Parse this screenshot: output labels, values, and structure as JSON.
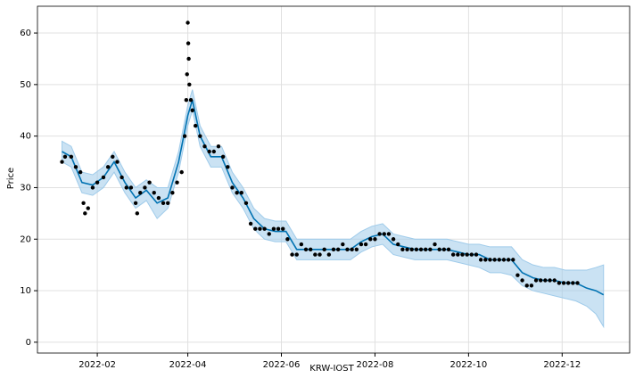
{
  "chart_data": {
    "type": "forecast",
    "xlabel": "KRW-IOST",
    "ylabel": "Price",
    "xlim": [
      -8,
      378
    ],
    "ylim": [
      -2.1,
      65.2
    ],
    "xticks": [
      {
        "value": 31,
        "label": "2022-02"
      },
      {
        "value": 90,
        "label": "2022-04"
      },
      {
        "value": 151,
        "label": "2022-06"
      },
      {
        "value": 212,
        "label": "2022-08"
      },
      {
        "value": 273,
        "label": "2022-10"
      },
      {
        "value": 334,
        "label": "2022-12"
      }
    ],
    "yticks": [
      0,
      10,
      20,
      30,
      40,
      50,
      60
    ],
    "grid": true,
    "series": [
      {
        "type": "scatter",
        "color": "#000000",
        "x": [
          8,
          10,
          14,
          17,
          20,
          22,
          23,
          25,
          28,
          31,
          35,
          38,
          41,
          44,
          47,
          50,
          53,
          56,
          57,
          59,
          62,
          65,
          68,
          71,
          74,
          77,
          80,
          83,
          86,
          88,
          89,
          89.5,
          90,
          90.3,
          90.6,
          91,
          92,
          93,
          95,
          98,
          101,
          104,
          107,
          110,
          113,
          116,
          119,
          122,
          125,
          128,
          131,
          134,
          137,
          140,
          143,
          146,
          149,
          152,
          155,
          158,
          161,
          164,
          167,
          170,
          173,
          176,
          179,
          182,
          185,
          188,
          191,
          194,
          197,
          200,
          203,
          206,
          209,
          212,
          215,
          218,
          221,
          224,
          227,
          230,
          233,
          236,
          239,
          242,
          245,
          248,
          251,
          254,
          257,
          260,
          263,
          266,
          269,
          272,
          275,
          278,
          281,
          284,
          287,
          290,
          293,
          296,
          299,
          302,
          305,
          308,
          311,
          314,
          317,
          320,
          323,
          326,
          329,
          332,
          335,
          338,
          341,
          344
        ],
        "values": [
          35,
          36,
          36,
          34,
          33,
          27,
          25,
          26,
          30,
          31,
          32,
          34,
          36,
          35,
          32,
          30,
          30,
          27,
          25,
          29,
          30,
          31,
          29,
          28,
          27,
          27,
          29,
          31,
          33,
          40,
          47,
          52,
          62,
          58,
          55,
          50,
          47,
          45,
          42,
          40,
          38,
          37,
          37,
          38,
          36,
          34,
          30,
          29,
          29,
          27,
          23,
          22,
          22,
          22,
          21,
          22,
          22,
          22,
          20,
          17,
          17,
          19,
          18,
          18,
          17,
          17,
          18,
          17,
          18,
          18,
          19,
          18,
          18,
          18,
          19,
          19,
          20,
          20,
          21,
          21,
          21,
          20,
          19,
          18,
          18,
          18,
          18,
          18,
          18,
          18,
          19,
          18,
          18,
          18,
          17,
          17,
          17,
          17,
          17,
          17,
          16,
          16,
          16,
          16,
          16,
          16,
          16,
          16,
          13,
          12,
          11,
          11,
          12,
          12,
          12,
          12,
          12,
          11.5,
          11.5,
          11.5,
          11.5,
          11.5
        ]
      },
      {
        "type": "line",
        "color": "#0072B2",
        "band_color": "#9fcbea",
        "x": [
          8,
          14,
          21,
          28,
          35,
          42,
          49,
          56,
          63,
          70,
          77,
          84,
          90,
          93,
          98,
          105,
          112,
          119,
          126,
          133,
          140,
          147,
          154,
          161,
          168,
          175,
          182,
          189,
          196,
          203,
          210,
          217,
          224,
          231,
          238,
          245,
          252,
          259,
          266,
          273,
          280,
          287,
          294,
          301,
          308,
          315,
          322,
          329,
          336,
          343,
          350,
          356,
          361
        ],
        "values": [
          37,
          36,
          31,
          30.5,
          32,
          35,
          31,
          28,
          29.5,
          27,
          28,
          35,
          44,
          47,
          40,
          36,
          36,
          31,
          28,
          24,
          22,
          21.5,
          21.5,
          18,
          18,
          18,
          18,
          18,
          18,
          19.5,
          20.5,
          21,
          19,
          18.5,
          18,
          18,
          18,
          18,
          17.5,
          17,
          17,
          16,
          16,
          16,
          13.5,
          12.5,
          12,
          12,
          11.5,
          11.5,
          10.5,
          10,
          9.2
        ],
        "lower": [
          35,
          34,
          29,
          28.5,
          30,
          33,
          29,
          26,
          27.5,
          24,
          26,
          33,
          42,
          45,
          38,
          34,
          34,
          29,
          26,
          22,
          20,
          19.5,
          19.5,
          16,
          16,
          16,
          16,
          16,
          16,
          17.5,
          18.5,
          19,
          17,
          16.5,
          16,
          16,
          16,
          16,
          15.5,
          15,
          14.5,
          13.5,
          13.5,
          13,
          11,
          10,
          9.5,
          9,
          8.5,
          8,
          7,
          5.5,
          3
        ],
        "upper": [
          39,
          38,
          33,
          32.5,
          34,
          37,
          33,
          30,
          31.5,
          30,
          30,
          37,
          46,
          49,
          42,
          38,
          38,
          33,
          30,
          26,
          24,
          23.5,
          23.5,
          20,
          20,
          20,
          20,
          20,
          20,
          21.5,
          22.5,
          23,
          21,
          20.5,
          20,
          20,
          20,
          20,
          19.5,
          19,
          19,
          18.5,
          18.5,
          18.5,
          16,
          15,
          14.5,
          14.5,
          14,
          14,
          14,
          14.5,
          15
        ]
      }
    ]
  }
}
